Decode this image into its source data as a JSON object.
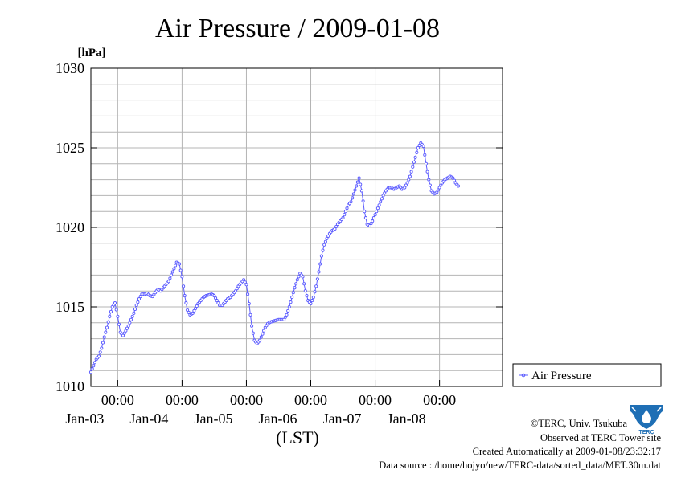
{
  "chart_data": {
    "type": "line",
    "title": "Air Pressure / 2009-01-08",
    "ylabel": "[hPa]",
    "xlabel": "(LST)",
    "ylim": [
      1010,
      1030
    ],
    "yticks": [
      1010,
      1015,
      1020,
      1025,
      1030
    ],
    "xlim": [
      "2009-01-02 14:00",
      "2009-01-08 23:30"
    ],
    "xticks": [
      {
        "time": "2009-01-03 00:00",
        "label": "00:00",
        "date_label": "Jan-03"
      },
      {
        "time": "2009-01-04 00:00",
        "label": "00:00",
        "date_label": "Jan-04"
      },
      {
        "time": "2009-01-05 00:00",
        "label": "00:00",
        "date_label": "Jan-05"
      },
      {
        "time": "2009-01-06 00:00",
        "label": "00:00",
        "date_label": "Jan-06"
      },
      {
        "time": "2009-01-07 00:00",
        "label": "00:00",
        "date_label": "Jan-07"
      },
      {
        "time": "2009-01-08 00:00",
        "label": "00:00",
        "date_label": "Jan-08"
      }
    ],
    "grid": true,
    "legend_position": "right",
    "series": [
      {
        "name": "Air Pressure",
        "color": "#5b5bff",
        "marker": "circle",
        "points": [
          [
            "2009-01-02 14:00",
            1010.9
          ],
          [
            "2009-01-02 15:00",
            1011.3
          ],
          [
            "2009-01-02 16:00",
            1011.7
          ],
          [
            "2009-01-02 17:00",
            1011.9
          ],
          [
            "2009-01-02 18:00",
            1012.4
          ],
          [
            "2009-01-02 19:00",
            1013.1
          ],
          [
            "2009-01-02 20:00",
            1013.7
          ],
          [
            "2009-01-02 21:00",
            1014.4
          ],
          [
            "2009-01-02 22:00",
            1015.0
          ],
          [
            "2009-01-02 23:00",
            1015.25
          ],
          [
            "2009-01-03 00:00",
            1014.4
          ],
          [
            "2009-01-03 01:00",
            1013.4
          ],
          [
            "2009-01-03 02:00",
            1013.2
          ],
          [
            "2009-01-03 03:00",
            1013.5
          ],
          [
            "2009-01-03 04:00",
            1013.8
          ],
          [
            "2009-01-03 05:00",
            1014.2
          ],
          [
            "2009-01-03 06:00",
            1014.6
          ],
          [
            "2009-01-03 07:00",
            1015.1
          ],
          [
            "2009-01-03 08:00",
            1015.5
          ],
          [
            "2009-01-03 09:00",
            1015.8
          ],
          [
            "2009-01-03 10:00",
            1015.8
          ],
          [
            "2009-01-03 11:00",
            1015.85
          ],
          [
            "2009-01-03 12:00",
            1015.7
          ],
          [
            "2009-01-03 13:00",
            1015.65
          ],
          [
            "2009-01-03 14:00",
            1015.9
          ],
          [
            "2009-01-03 15:00",
            1016.1
          ],
          [
            "2009-01-03 16:00",
            1016.0
          ],
          [
            "2009-01-03 17:00",
            1016.2
          ],
          [
            "2009-01-03 18:00",
            1016.4
          ],
          [
            "2009-01-03 19:00",
            1016.6
          ],
          [
            "2009-01-03 20:00",
            1017.0
          ],
          [
            "2009-01-03 21:00",
            1017.4
          ],
          [
            "2009-01-03 22:00",
            1017.8
          ],
          [
            "2009-01-03 23:00",
            1017.7
          ],
          [
            "2009-01-04 00:00",
            1016.9
          ],
          [
            "2009-01-04 01:00",
            1015.7
          ],
          [
            "2009-01-04 02:00",
            1014.8
          ],
          [
            "2009-01-04 03:00",
            1014.5
          ],
          [
            "2009-01-04 04:00",
            1014.6
          ],
          [
            "2009-01-04 05:00",
            1014.9
          ],
          [
            "2009-01-04 06:00",
            1015.2
          ],
          [
            "2009-01-04 07:00",
            1015.4
          ],
          [
            "2009-01-04 08:00",
            1015.6
          ],
          [
            "2009-01-04 09:00",
            1015.7
          ],
          [
            "2009-01-04 10:00",
            1015.75
          ],
          [
            "2009-01-04 11:00",
            1015.8
          ],
          [
            "2009-01-04 12:00",
            1015.7
          ],
          [
            "2009-01-04 13:00",
            1015.4
          ],
          [
            "2009-01-04 14:00",
            1015.1
          ],
          [
            "2009-01-04 15:00",
            1015.1
          ],
          [
            "2009-01-04 16:00",
            1015.3
          ],
          [
            "2009-01-04 17:00",
            1015.5
          ],
          [
            "2009-01-04 18:00",
            1015.6
          ],
          [
            "2009-01-04 19:00",
            1015.8
          ],
          [
            "2009-01-04 20:00",
            1016.0
          ],
          [
            "2009-01-04 21:00",
            1016.3
          ],
          [
            "2009-01-04 22:00",
            1016.5
          ],
          [
            "2009-01-04 23:00",
            1016.7
          ],
          [
            "2009-01-05 00:00",
            1016.4
          ],
          [
            "2009-01-05 01:00",
            1015.2
          ],
          [
            "2009-01-05 02:00",
            1013.8
          ],
          [
            "2009-01-05 03:00",
            1012.9
          ],
          [
            "2009-01-05 04:00",
            1012.7
          ],
          [
            "2009-01-05 05:00",
            1012.9
          ],
          [
            "2009-01-05 06:00",
            1013.3
          ],
          [
            "2009-01-05 07:00",
            1013.7
          ],
          [
            "2009-01-05 08:00",
            1013.95
          ],
          [
            "2009-01-05 09:00",
            1014.05
          ],
          [
            "2009-01-05 10:00",
            1014.1
          ],
          [
            "2009-01-05 11:00",
            1014.15
          ],
          [
            "2009-01-05 12:00",
            1014.2
          ],
          [
            "2009-01-05 13:00",
            1014.2
          ],
          [
            "2009-01-05 14:00",
            1014.2
          ],
          [
            "2009-01-05 15:00",
            1014.5
          ],
          [
            "2009-01-05 16:00",
            1015.0
          ],
          [
            "2009-01-05 17:00",
            1015.6
          ],
          [
            "2009-01-05 18:00",
            1016.2
          ],
          [
            "2009-01-05 19:00",
            1016.7
          ],
          [
            "2009-01-05 20:00",
            1017.1
          ],
          [
            "2009-01-05 21:00",
            1016.9
          ],
          [
            "2009-01-05 22:00",
            1016.0
          ],
          [
            "2009-01-05 23:00",
            1015.4
          ],
          [
            "2009-01-06 00:00",
            1015.2
          ],
          [
            "2009-01-06 01:00",
            1015.6
          ],
          [
            "2009-01-06 02:00",
            1016.3
          ],
          [
            "2009-01-06 03:00",
            1017.2
          ],
          [
            "2009-01-06 04:00",
            1018.2
          ],
          [
            "2009-01-06 05:00",
            1018.9
          ],
          [
            "2009-01-06 06:00",
            1019.3
          ],
          [
            "2009-01-06 07:00",
            1019.6
          ],
          [
            "2009-01-06 08:00",
            1019.8
          ],
          [
            "2009-01-06 09:00",
            1019.9
          ],
          [
            "2009-01-06 10:00",
            1020.2
          ],
          [
            "2009-01-06 11:00",
            1020.4
          ],
          [
            "2009-01-06 12:00",
            1020.6
          ],
          [
            "2009-01-06 13:00",
            1021.0
          ],
          [
            "2009-01-06 14:00",
            1021.4
          ],
          [
            "2009-01-06 15:00",
            1021.6
          ],
          [
            "2009-01-06 16:00",
            1022.1
          ],
          [
            "2009-01-06 17:00",
            1022.6
          ],
          [
            "2009-01-06 18:00",
            1023.1
          ],
          [
            "2009-01-06 19:00",
            1022.3
          ],
          [
            "2009-01-06 20:00",
            1021.0
          ],
          [
            "2009-01-06 21:00",
            1020.2
          ],
          [
            "2009-01-06 22:00",
            1020.1
          ],
          [
            "2009-01-06 23:00",
            1020.4
          ],
          [
            "2009-01-07 00:00",
            1020.8
          ],
          [
            "2009-01-07 01:00",
            1021.2
          ],
          [
            "2009-01-07 02:00",
            1021.6
          ],
          [
            "2009-01-07 03:00",
            1022.0
          ],
          [
            "2009-01-07 04:00",
            1022.3
          ],
          [
            "2009-01-07 05:00",
            1022.5
          ],
          [
            "2009-01-07 06:00",
            1022.5
          ],
          [
            "2009-01-07 07:00",
            1022.4
          ],
          [
            "2009-01-07 08:00",
            1022.5
          ],
          [
            "2009-01-07 09:00",
            1022.6
          ],
          [
            "2009-01-07 10:00",
            1022.4
          ],
          [
            "2009-01-07 11:00",
            1022.5
          ],
          [
            "2009-01-07 12:00",
            1022.8
          ],
          [
            "2009-01-07 13:00",
            1023.2
          ],
          [
            "2009-01-07 14:00",
            1023.8
          ],
          [
            "2009-01-07 15:00",
            1024.4
          ],
          [
            "2009-01-07 16:00",
            1025.0
          ],
          [
            "2009-01-07 17:00",
            1025.3
          ],
          [
            "2009-01-07 18:00",
            1025.1
          ],
          [
            "2009-01-07 19:00",
            1024.0
          ],
          [
            "2009-01-07 20:00",
            1023.0
          ],
          [
            "2009-01-07 21:00",
            1022.3
          ],
          [
            "2009-01-07 22:00",
            1022.1
          ],
          [
            "2009-01-07 23:00",
            1022.2
          ],
          [
            "2009-01-08 00:00",
            1022.5
          ],
          [
            "2009-01-08 01:00",
            1022.8
          ],
          [
            "2009-01-08 02:00",
            1023.0
          ],
          [
            "2009-01-08 03:00",
            1023.1
          ],
          [
            "2009-01-08 04:00",
            1023.2
          ],
          [
            "2009-01-08 05:00",
            1023.1
          ],
          [
            "2009-01-08 06:00",
            1022.8
          ],
          [
            "2009-01-08 07:00",
            1022.6
          ]
        ]
      }
    ]
  },
  "credits": {
    "copyright": "©TERC, Univ. Tsukuba",
    "observed": "Observed at TERC Tower site",
    "created": "Created Automatically at 2009-01-08/23:32:17",
    "source": "Data source : /home/hojyo/new/TERC-data/sorted_data/MET.30m.dat"
  },
  "logo": {
    "text": "TERC",
    "color": "#1f6fb5"
  }
}
